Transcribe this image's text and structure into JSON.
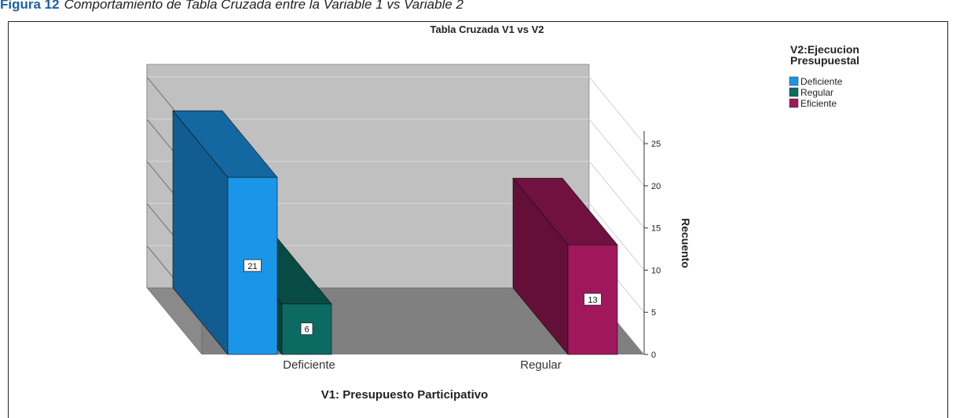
{
  "header": {
    "figure": "Figura 12",
    "caption": "Comportamiento de Tabla Cruzada entre la Variable 1 vs Variable 2"
  },
  "chart_data": {
    "type": "bar3d",
    "title": "Tabla Cruzada V1 vs V2",
    "x_label": "V1: Presupuesto Participativo",
    "y_label": "Recuento",
    "legend_title": "V2:Ejecucion Presupuestal",
    "categories": [
      "Deficiente",
      "Regular"
    ],
    "series": [
      {
        "name": "Deficiente",
        "color": "#1b95e8",
        "values": [
          21,
          null
        ]
      },
      {
        "name": "Regular",
        "color": "#0b6b62",
        "values": [
          6,
          null
        ]
      },
      {
        "name": "Eficiente",
        "color": "#a0185b",
        "values": [
          null,
          13
        ]
      }
    ],
    "ylim": [
      0,
      26.5
    ],
    "yticks": [
      0,
      5,
      10,
      15,
      20,
      25
    ],
    "grid": true,
    "data_labels": true
  }
}
